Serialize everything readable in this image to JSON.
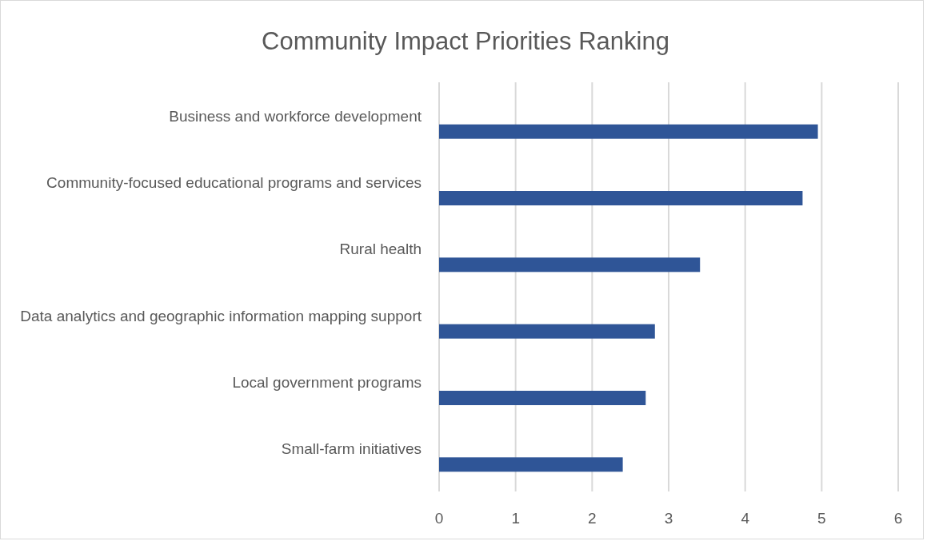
{
  "chart_data": {
    "type": "bar",
    "orientation": "horizontal",
    "title": "Community Impact Priorities Ranking",
    "categories": [
      "Business and workforce development",
      "Community-focused educational programs and services",
      "Rural health",
      "Data analytics and geographic information mapping support",
      "Local government programs",
      "Small-farm initiatives"
    ],
    "values": [
      4.95,
      4.75,
      3.41,
      2.82,
      2.7,
      2.4
    ],
    "color": "#2f5597",
    "xlim": [
      0,
      6
    ],
    "xticks": [
      0,
      1,
      2,
      3,
      4,
      5,
      6
    ],
    "grid": "x"
  }
}
